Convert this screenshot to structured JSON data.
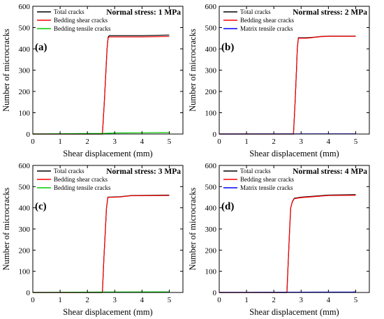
{
  "chart_data": [
    {
      "type": "line",
      "panel_label": "(a)",
      "title": "Normal stress: 1 MPa",
      "xlabel": "Shear displacement (mm)",
      "ylabel": "Number of microcracks",
      "xlim": [
        0,
        5.5
      ],
      "ylim": [
        0,
        600
      ],
      "xticks": [
        "0",
        "1",
        "2",
        "3",
        "4",
        "5"
      ],
      "yticks": [
        "0",
        "100",
        "200",
        "300",
        "400",
        "500",
        "600"
      ],
      "legend_position": "top-left",
      "series": [
        {
          "name": "Total cracks",
          "color": "#000000",
          "x": [
            0,
            2.55,
            2.62,
            2.68,
            2.72,
            2.76,
            2.8,
            3.0,
            4.0,
            5.0
          ],
          "y": [
            0,
            0,
            150,
            300,
            400,
            455,
            462,
            462,
            462,
            465
          ]
        },
        {
          "name": "Bedding shear cracks",
          "color": "#ff0000",
          "x": [
            0,
            2.55,
            2.62,
            2.68,
            2.72,
            2.76,
            2.8,
            3.0,
            4.0,
            5.0
          ],
          "y": [
            0,
            0,
            150,
            300,
            400,
            452,
            456,
            456,
            456,
            458
          ]
        },
        {
          "name": "Bedding tensile cracks",
          "color": "#00cc00",
          "x": [
            0,
            2.6,
            3.0,
            4.0,
            5.0
          ],
          "y": [
            0,
            3,
            5,
            6,
            7
          ]
        }
      ]
    },
    {
      "type": "line",
      "panel_label": "(b)",
      "title": "Normal stress: 2 MPa",
      "xlabel": "Shear displacement (mm)",
      "ylabel": "Number of microcracks",
      "xlim": [
        0,
        5.5
      ],
      "ylim": [
        0,
        600
      ],
      "xticks": [
        "0",
        "1",
        "2",
        "3",
        "4",
        "5"
      ],
      "yticks": [
        "0",
        "100",
        "200",
        "300",
        "400",
        "500",
        "600"
      ],
      "legend_position": "top-left",
      "series": [
        {
          "name": "Total cracks",
          "color": "#000000",
          "x": [
            0,
            2.72,
            2.78,
            2.83,
            2.86,
            2.9,
            3.2,
            3.5,
            3.7,
            4.0,
            5.0
          ],
          "y": [
            0,
            0,
            150,
            300,
            400,
            452,
            452,
            455,
            458,
            460,
            460
          ]
        },
        {
          "name": "Bedding shear cracks",
          "color": "#ff0000",
          "x": [
            0,
            2.72,
            2.78,
            2.83,
            2.86,
            2.9,
            3.2,
            3.5,
            3.7,
            4.0,
            5.0
          ],
          "y": [
            0,
            0,
            150,
            300,
            400,
            450,
            450,
            454,
            457,
            459,
            459
          ]
        },
        {
          "name": "Matrix tensile cracks",
          "color": "#0000ff",
          "x": [
            0,
            5.0
          ],
          "y": [
            0,
            1
          ]
        }
      ]
    },
    {
      "type": "line",
      "panel_label": "(c)",
      "title": "Normal stress: 3 MPa",
      "xlabel": "Shear displacement (mm)",
      "ylabel": "Number of microcracks",
      "xlim": [
        0,
        5.5
      ],
      "ylim": [
        0,
        600
      ],
      "xticks": [
        "0",
        "1",
        "2",
        "3",
        "4",
        "5"
      ],
      "yticks": [
        "0",
        "100",
        "200",
        "300",
        "400",
        "500",
        "600"
      ],
      "legend_position": "top-left",
      "series": [
        {
          "name": "Total cracks",
          "color": "#000000",
          "x": [
            0,
            2.55,
            2.6,
            2.66,
            2.7,
            2.75,
            3.2,
            3.6,
            5.0
          ],
          "y": [
            0,
            0,
            150,
            300,
            400,
            450,
            452,
            458,
            460
          ]
        },
        {
          "name": "Bedding shear cracks",
          "color": "#ff0000",
          "x": [
            0,
            2.55,
            2.6,
            2.66,
            2.7,
            2.75,
            3.2,
            3.6,
            5.0
          ],
          "y": [
            0,
            0,
            150,
            300,
            400,
            449,
            451,
            457,
            458
          ]
        },
        {
          "name": "Bedding tensile cracks",
          "color": "#00cc00",
          "x": [
            0,
            2.6,
            5.0
          ],
          "y": [
            0,
            2,
            3
          ]
        }
      ]
    },
    {
      "type": "line",
      "panel_label": "(d)",
      "title": "Normal stress: 4 MPa",
      "xlabel": "Shear displacement (mm)",
      "ylabel": "Number of microcracks",
      "xlim": [
        0,
        5.5
      ],
      "ylim": [
        0,
        600
      ],
      "xticks": [
        "0",
        "1",
        "2",
        "3",
        "4",
        "5"
      ],
      "yticks": [
        "0",
        "100",
        "200",
        "300",
        "400",
        "500",
        "600"
      ],
      "legend_position": "top-left",
      "series": [
        {
          "name": "Total cracks",
          "color": "#000000",
          "x": [
            0,
            2.48,
            2.53,
            2.58,
            2.62,
            2.68,
            2.75,
            3.0,
            3.5,
            4.0,
            5.0
          ],
          "y": [
            0,
            0,
            150,
            300,
            400,
            430,
            445,
            450,
            455,
            460,
            462
          ]
        },
        {
          "name": "Bedding shear cracks",
          "color": "#ff0000",
          "x": [
            0,
            2.48,
            2.53,
            2.58,
            2.62,
            2.68,
            2.75,
            3.0,
            3.5,
            4.0,
            5.0
          ],
          "y": [
            0,
            0,
            150,
            300,
            400,
            428,
            443,
            448,
            453,
            458,
            459
          ]
        },
        {
          "name": "Matrix tensile cracks",
          "color": "#0000ff",
          "x": [
            0,
            4.9,
            5.0
          ],
          "y": [
            0,
            2,
            3
          ]
        }
      ]
    }
  ]
}
